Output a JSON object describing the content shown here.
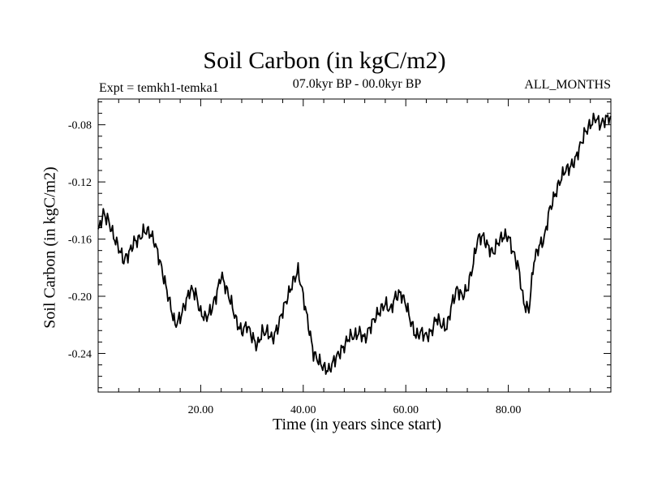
{
  "chart_data": {
    "type": "line",
    "title": "Soil Carbon (in kgC/m2)",
    "subtitle_left": "Expt = temkh1-temka1",
    "subtitle_center": "07.0kyr BP - 00.0kyr BP",
    "subtitle_right": "ALL_MONTHS",
    "xlabel": "Time (in years since start)",
    "ylabel": "Soil Carbon (in kgC/m2)",
    "xlim": [
      0,
      100
    ],
    "ylim": [
      -0.267,
      -0.062
    ],
    "x_ticks": [
      20,
      40,
      60,
      80
    ],
    "x_tick_labels": [
      "20.00",
      "40.00",
      "60.00",
      "80.00"
    ],
    "y_ticks": [
      -0.08,
      -0.12,
      -0.16,
      -0.2,
      -0.24
    ],
    "y_tick_labels": [
      "-0.08",
      "-0.12",
      "-0.16",
      "-0.20",
      "-0.24"
    ],
    "series": [
      {
        "name": "Soil Carbon",
        "color": "#000000",
        "x": [
          0,
          1,
          2,
          3,
          4,
          5,
          6,
          7,
          8,
          9,
          10,
          11,
          12,
          13,
          14,
          15,
          16,
          17,
          18,
          19,
          20,
          21,
          22,
          23,
          24,
          25,
          26,
          27,
          28,
          29,
          30,
          31,
          32,
          33,
          34,
          35,
          36,
          37,
          38,
          39,
          40,
          41,
          42,
          43,
          44,
          45,
          46,
          47,
          48,
          49,
          50,
          51,
          52,
          53,
          54,
          55,
          56,
          57,
          58,
          59,
          60,
          61,
          62,
          63,
          64,
          65,
          66,
          67,
          68,
          69,
          70,
          71,
          72,
          73,
          74,
          75,
          76,
          77,
          78,
          79,
          80,
          81,
          82,
          83,
          84,
          85,
          86,
          87,
          88,
          89,
          90,
          91,
          92,
          93,
          94,
          95,
          96,
          97,
          98,
          99,
          100
        ],
        "y": [
          -0.155,
          -0.142,
          -0.147,
          -0.158,
          -0.166,
          -0.175,
          -0.17,
          -0.162,
          -0.16,
          -0.154,
          -0.155,
          -0.162,
          -0.175,
          -0.19,
          -0.205,
          -0.22,
          -0.215,
          -0.205,
          -0.195,
          -0.198,
          -0.212,
          -0.215,
          -0.21,
          -0.2,
          -0.185,
          -0.195,
          -0.205,
          -0.218,
          -0.225,
          -0.22,
          -0.228,
          -0.235,
          -0.225,
          -0.225,
          -0.23,
          -0.222,
          -0.21,
          -0.2,
          -0.19,
          -0.182,
          -0.2,
          -0.22,
          -0.24,
          -0.245,
          -0.25,
          -0.252,
          -0.245,
          -0.24,
          -0.235,
          -0.228,
          -0.228,
          -0.225,
          -0.23,
          -0.222,
          -0.215,
          -0.21,
          -0.205,
          -0.21,
          -0.2,
          -0.198,
          -0.205,
          -0.218,
          -0.228,
          -0.225,
          -0.228,
          -0.225,
          -0.215,
          -0.22,
          -0.222,
          -0.205,
          -0.195,
          -0.2,
          -0.195,
          -0.18,
          -0.16,
          -0.158,
          -0.165,
          -0.17,
          -0.162,
          -0.158,
          -0.158,
          -0.17,
          -0.18,
          -0.205,
          -0.21,
          -0.175,
          -0.165,
          -0.16,
          -0.14,
          -0.13,
          -0.12,
          -0.112,
          -0.11,
          -0.105,
          -0.095,
          -0.085,
          -0.08,
          -0.075,
          -0.08,
          -0.076,
          -0.074
        ]
      }
    ]
  }
}
